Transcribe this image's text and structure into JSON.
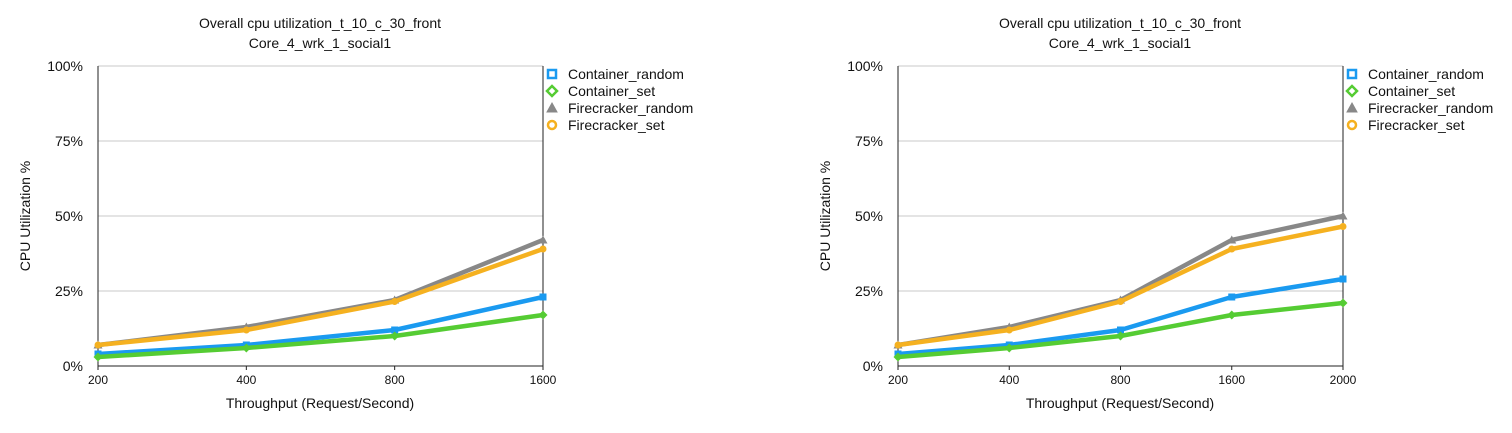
{
  "chart_data": [
    {
      "type": "line",
      "title": "Overall cpu utilization_t_10_c_30_front",
      "subtitle": "Core_4_wrk_1_social1",
      "xlabel": "Throughput (Request/Second)",
      "ylabel": "CPU Utilization %",
      "categories": [
        "200",
        "400",
        "800",
        "1600"
      ],
      "ylim": [
        0,
        100
      ],
      "yticks": [
        "0%",
        "25%",
        "50%",
        "75%",
        "100%"
      ],
      "legend_position": "right",
      "series": [
        {
          "name": "Container_random",
          "color": "#1a9af0",
          "marker": "square",
          "values": [
            4,
            7,
            12,
            23
          ]
        },
        {
          "name": "Container_set",
          "color": "#55cc33",
          "marker": "diamond",
          "values": [
            3,
            6,
            10,
            17
          ]
        },
        {
          "name": "Firecracker_random",
          "color": "#888888",
          "marker": "triangle",
          "values": [
            7,
            13,
            22,
            42
          ]
        },
        {
          "name": "Firecracker_set",
          "color": "#f5b120",
          "marker": "circle",
          "values": [
            7,
            12,
            21.5,
            39
          ]
        }
      ]
    },
    {
      "type": "line",
      "title": "Overall cpu utilization_t_10_c_30_front",
      "subtitle": "Core_4_wrk_1_social1",
      "xlabel": "Throughput (Request/Second)",
      "ylabel": "CPU Utilization %",
      "categories": [
        "200",
        "400",
        "800",
        "1600",
        "2000"
      ],
      "ylim": [
        0,
        100
      ],
      "yticks": [
        "0%",
        "25%",
        "50%",
        "75%",
        "100%"
      ],
      "legend_position": "right",
      "series": [
        {
          "name": "Container_random",
          "color": "#1a9af0",
          "marker": "square",
          "values": [
            4,
            7,
            12,
            23,
            29
          ]
        },
        {
          "name": "Container_set",
          "color": "#55cc33",
          "marker": "diamond",
          "values": [
            3,
            6,
            10,
            17,
            21
          ]
        },
        {
          "name": "Firecracker_random",
          "color": "#888888",
          "marker": "triangle",
          "values": [
            7,
            13,
            22,
            42,
            50
          ]
        },
        {
          "name": "Firecracker_set",
          "color": "#f5b120",
          "marker": "circle",
          "values": [
            7,
            12,
            21.5,
            39,
            46.5
          ]
        }
      ]
    }
  ]
}
